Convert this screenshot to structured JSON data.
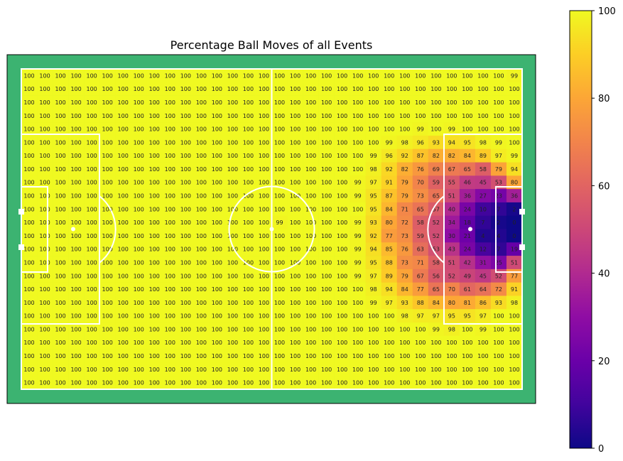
{
  "chart_data": {
    "type": "heatmap",
    "title": "Percentage Ball Moves of all Events",
    "colormap": "plasma",
    "color_range": [
      0,
      100
    ],
    "colorbar_ticks": [
      0,
      20,
      40,
      60,
      80,
      100
    ],
    "pitch_color": "#3cb371",
    "line_color": "#ffffff",
    "values": [
      [
        100,
        100,
        100,
        100,
        100,
        100,
        100,
        100,
        100,
        100,
        100,
        100,
        100,
        100,
        100,
        100,
        100,
        100,
        100,
        100,
        100,
        100,
        100,
        100,
        100,
        100,
        100,
        100,
        100,
        100,
        100,
        99
      ],
      [
        100,
        100,
        100,
        100,
        100,
        100,
        100,
        100,
        100,
        100,
        100,
        100,
        100,
        100,
        100,
        100,
        100,
        100,
        100,
        100,
        100,
        100,
        100,
        100,
        100,
        100,
        100,
        100,
        100,
        100,
        100,
        100
      ],
      [
        100,
        100,
        100,
        100,
        100,
        100,
        100,
        100,
        100,
        100,
        100,
        100,
        100,
        100,
        100,
        100,
        100,
        100,
        100,
        100,
        100,
        100,
        100,
        100,
        100,
        100,
        100,
        100,
        100,
        100,
        100,
        100
      ],
      [
        100,
        100,
        100,
        100,
        100,
        100,
        100,
        100,
        100,
        100,
        100,
        100,
        100,
        100,
        100,
        100,
        100,
        100,
        100,
        100,
        100,
        100,
        100,
        100,
        100,
        100,
        100,
        100,
        100,
        100,
        100,
        100
      ],
      [
        100,
        100,
        100,
        100,
        100,
        100,
        100,
        100,
        100,
        100,
        100,
        100,
        100,
        100,
        100,
        100,
        100,
        100,
        100,
        100,
        100,
        100,
        100,
        100,
        100,
        99,
        100,
        99,
        100,
        100,
        100,
        100
      ],
      [
        100,
        100,
        100,
        100,
        100,
        100,
        100,
        100,
        100,
        100,
        100,
        100,
        100,
        100,
        100,
        100,
        100,
        100,
        100,
        100,
        100,
        100,
        100,
        99,
        98,
        96,
        93,
        94,
        95,
        98,
        99,
        100
      ],
      [
        100,
        100,
        100,
        100,
        100,
        100,
        100,
        100,
        100,
        100,
        100,
        100,
        100,
        100,
        100,
        100,
        100,
        100,
        100,
        100,
        100,
        100,
        99,
        96,
        92,
        87,
        82,
        82,
        84,
        89,
        97,
        99
      ],
      [
        100,
        100,
        100,
        100,
        100,
        100,
        100,
        100,
        100,
        100,
        100,
        100,
        100,
        100,
        100,
        100,
        100,
        100,
        100,
        100,
        100,
        100,
        98,
        92,
        82,
        76,
        69,
        67,
        65,
        58,
        79,
        94
      ],
      [
        100,
        100,
        100,
        100,
        100,
        100,
        100,
        100,
        100,
        100,
        100,
        100,
        100,
        100,
        100,
        100,
        100,
        100,
        100,
        100,
        100,
        99,
        97,
        91,
        79,
        70,
        59,
        55,
        46,
        45,
        53,
        80
      ],
      [
        100,
        100,
        100,
        100,
        100,
        100,
        100,
        100,
        100,
        100,
        100,
        100,
        100,
        100,
        100,
        100,
        100,
        100,
        100,
        100,
        100,
        99,
        95,
        87,
        79,
        73,
        65,
        51,
        36,
        27,
        23,
        36
      ],
      [
        100,
        100,
        100,
        100,
        100,
        100,
        100,
        100,
        100,
        100,
        100,
        100,
        100,
        100,
        100,
        100,
        100,
        100,
        100,
        100,
        100,
        100,
        95,
        84,
        71,
        65,
        57,
        40,
        24,
        10,
        7,
        2
      ],
      [
        100,
        100,
        100,
        100,
        100,
        100,
        100,
        100,
        100,
        100,
        100,
        100,
        100,
        100,
        100,
        100,
        99,
        100,
        100,
        100,
        100,
        99,
        93,
        80,
        72,
        58,
        52,
        34,
        18,
        7,
        2,
        0
      ],
      [
        100,
        100,
        100,
        100,
        100,
        100,
        100,
        100,
        100,
        100,
        100,
        100,
        100,
        100,
        100,
        100,
        100,
        100,
        100,
        100,
        100,
        99,
        92,
        77,
        73,
        59,
        52,
        30,
        21,
        4,
        4,
        0
      ],
      [
        100,
        100,
        100,
        100,
        100,
        100,
        100,
        100,
        100,
        100,
        100,
        100,
        100,
        100,
        100,
        100,
        100,
        100,
        100,
        100,
        100,
        99,
        94,
        85,
        76,
        63,
        53,
        43,
        24,
        12,
        7,
        19
      ],
      [
        100,
        100,
        100,
        100,
        100,
        100,
        100,
        100,
        100,
        100,
        100,
        100,
        100,
        100,
        100,
        100,
        100,
        100,
        100,
        100,
        100,
        99,
        95,
        88,
        73,
        71,
        58,
        51,
        42,
        31,
        25,
        51
      ],
      [
        100,
        100,
        100,
        100,
        100,
        100,
        100,
        100,
        100,
        100,
        100,
        100,
        100,
        100,
        100,
        100,
        100,
        100,
        100,
        100,
        100,
        99,
        97,
        89,
        79,
        67,
        56,
        52,
        49,
        45,
        52,
        77
      ],
      [
        100,
        100,
        100,
        100,
        100,
        100,
        100,
        100,
        100,
        100,
        100,
        100,
        100,
        100,
        100,
        100,
        100,
        100,
        100,
        100,
        100,
        100,
        98,
        94,
        84,
        77,
        65,
        70,
        61,
        64,
        72,
        91
      ],
      [
        100,
        100,
        100,
        100,
        100,
        100,
        100,
        100,
        100,
        100,
        100,
        100,
        100,
        100,
        100,
        100,
        100,
        100,
        100,
        100,
        100,
        100,
        99,
        97,
        93,
        88,
        84,
        80,
        81,
        86,
        93,
        98
      ],
      [
        100,
        100,
        100,
        100,
        100,
        100,
        100,
        100,
        100,
        100,
        100,
        100,
        100,
        100,
        100,
        100,
        100,
        100,
        100,
        100,
        100,
        100,
        100,
        100,
        98,
        97,
        97,
        95,
        95,
        97,
        100,
        100
      ],
      [
        100,
        100,
        100,
        100,
        100,
        100,
        100,
        100,
        100,
        100,
        100,
        100,
        100,
        100,
        100,
        100,
        100,
        100,
        100,
        100,
        100,
        100,
        100,
        100,
        100,
        100,
        99,
        98,
        100,
        99,
        100,
        100
      ],
      [
        100,
        100,
        100,
        100,
        100,
        100,
        100,
        100,
        100,
        100,
        100,
        100,
        100,
        100,
        100,
        100,
        100,
        100,
        100,
        100,
        100,
        100,
        100,
        100,
        100,
        100,
        100,
        100,
        100,
        100,
        100,
        100
      ],
      [
        100,
        100,
        100,
        100,
        100,
        100,
        100,
        100,
        100,
        100,
        100,
        100,
        100,
        100,
        100,
        100,
        100,
        100,
        100,
        100,
        100,
        100,
        100,
        100,
        100,
        100,
        100,
        100,
        100,
        100,
        100,
        100
      ],
      [
        100,
        100,
        100,
        100,
        100,
        100,
        100,
        100,
        100,
        100,
        100,
        100,
        100,
        100,
        100,
        100,
        100,
        100,
        100,
        100,
        100,
        100,
        100,
        100,
        100,
        100,
        100,
        100,
        100,
        100,
        100,
        100
      ],
      [
        100,
        100,
        100,
        100,
        100,
        100,
        100,
        100,
        100,
        100,
        100,
        100,
        100,
        100,
        100,
        100,
        100,
        100,
        100,
        100,
        100,
        100,
        100,
        100,
        100,
        100,
        100,
        100,
        100,
        100,
        100,
        100
      ]
    ]
  }
}
